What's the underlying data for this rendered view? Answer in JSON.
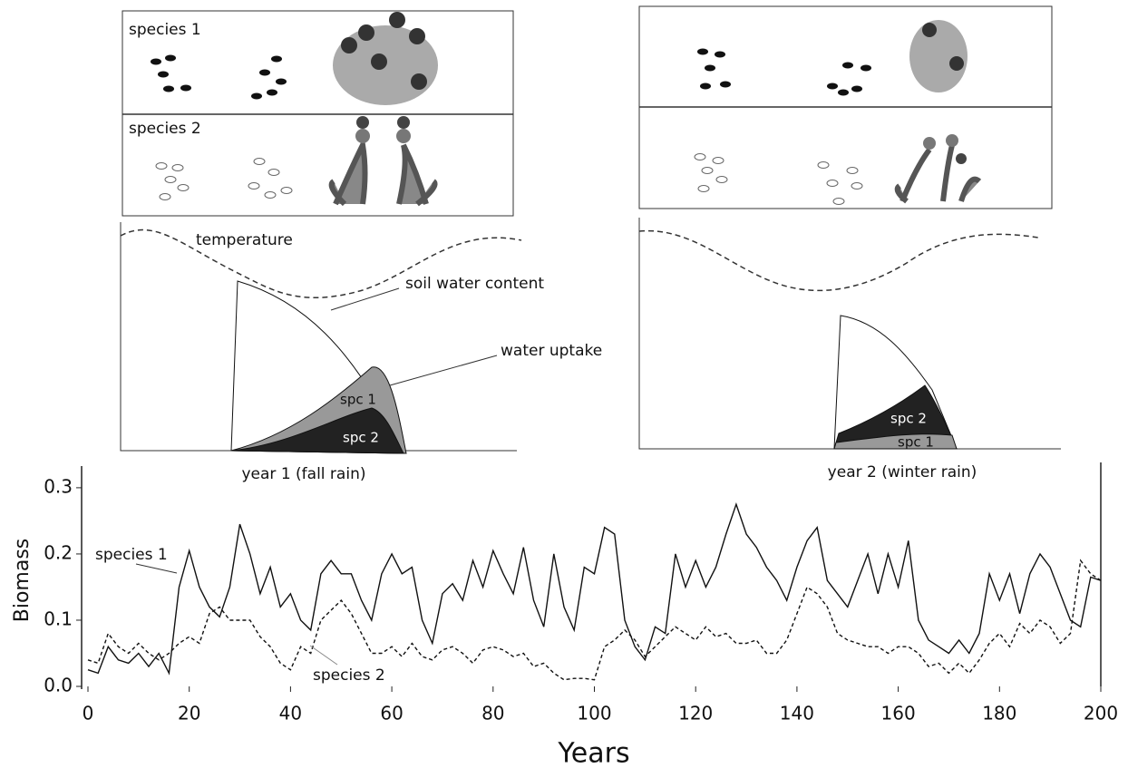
{
  "panels": {
    "species_labels": [
      "species 1",
      "species 2"
    ],
    "left": {
      "temperature": "temperature",
      "soil_water": "soil water content",
      "water_uptake": "water uptake",
      "spc1": "spc 1",
      "spc2": "spc 2",
      "caption": "year 1 (fall rain)"
    },
    "right": {
      "spc2": "spc 2",
      "spc1": "spc 1",
      "caption": "year 2 (winter rain)"
    }
  },
  "chart_data": {
    "type": "line",
    "xlabel": "Years",
    "ylabel": "Biomass",
    "xlim": [
      0,
      200
    ],
    "ylim": [
      0,
      0.33
    ],
    "xticks": [
      0,
      20,
      40,
      60,
      80,
      100,
      120,
      140,
      160,
      180,
      200
    ],
    "yticks": [
      {
        "value": 0,
        "label": "0.0"
      },
      0.1,
      0.2,
      0.3
    ],
    "x": [
      0,
      2,
      4,
      6,
      8,
      10,
      12,
      14,
      16,
      18,
      20,
      22,
      24,
      26,
      28,
      30,
      32,
      34,
      36,
      38,
      40,
      42,
      44,
      46,
      48,
      50,
      52,
      54,
      56,
      58,
      60,
      62,
      64,
      66,
      68,
      70,
      72,
      74,
      76,
      78,
      80,
      82,
      84,
      86,
      88,
      90,
      92,
      94,
      96,
      98,
      100,
      102,
      104,
      106,
      108,
      110,
      112,
      114,
      116,
      118,
      120,
      122,
      124,
      126,
      128,
      130,
      132,
      134,
      136,
      138,
      140,
      142,
      144,
      146,
      148,
      150,
      152,
      154,
      156,
      158,
      160,
      162,
      164,
      166,
      168,
      170,
      172,
      174,
      176,
      178,
      180,
      182,
      184,
      186,
      188,
      190,
      192,
      194,
      196,
      198,
      200
    ],
    "series": [
      {
        "name": "species 1",
        "color": "#111111",
        "dash": "none",
        "values": [
          0.025,
          0.02,
          0.06,
          0.04,
          0.035,
          0.05,
          0.03,
          0.05,
          0.02,
          0.15,
          0.205,
          0.15,
          0.12,
          0.105,
          0.15,
          0.245,
          0.2,
          0.14,
          0.18,
          0.12,
          0.14,
          0.1,
          0.085,
          0.17,
          0.19,
          0.17,
          0.17,
          0.13,
          0.1,
          0.17,
          0.2,
          0.17,
          0.18,
          0.1,
          0.065,
          0.14,
          0.155,
          0.13,
          0.19,
          0.15,
          0.205,
          0.17,
          0.14,
          0.21,
          0.13,
          0.09,
          0.2,
          0.12,
          0.085,
          0.18,
          0.17,
          0.24,
          0.23,
          0.1,
          0.06,
          0.04,
          0.09,
          0.08,
          0.2,
          0.15,
          0.19,
          0.15,
          0.18,
          0.23,
          0.275,
          0.23,
          0.21,
          0.18,
          0.16,
          0.13,
          0.18,
          0.22,
          0.24,
          0.16,
          0.14,
          0.12,
          0.16,
          0.2,
          0.14,
          0.2,
          0.15,
          0.22,
          0.1,
          0.07,
          0.06,
          0.05,
          0.07,
          0.05,
          0.08,
          0.17,
          0.13,
          0.17,
          0.11,
          0.17,
          0.2,
          0.18,
          0.14,
          0.1,
          0.09,
          0.165,
          0.16
        ]
      },
      {
        "name": "species 2",
        "color": "#111111",
        "dash": "4 3",
        "values": [
          0.04,
          0.035,
          0.08,
          0.06,
          0.05,
          0.065,
          0.05,
          0.04,
          0.05,
          0.065,
          0.075,
          0.065,
          0.11,
          0.12,
          0.1,
          0.1,
          0.1,
          0.075,
          0.06,
          0.035,
          0.025,
          0.06,
          0.05,
          0.1,
          0.115,
          0.13,
          0.11,
          0.08,
          0.05,
          0.05,
          0.06,
          0.045,
          0.065,
          0.045,
          0.04,
          0.055,
          0.06,
          0.05,
          0.035,
          0.055,
          0.06,
          0.055,
          0.045,
          0.05,
          0.03,
          0.035,
          0.02,
          0.01,
          0.012,
          0.012,
          0.01,
          0.06,
          0.07,
          0.085,
          0.07,
          0.045,
          0.06,
          0.075,
          0.09,
          0.08,
          0.07,
          0.09,
          0.075,
          0.08,
          0.065,
          0.065,
          0.07,
          0.05,
          0.05,
          0.07,
          0.11,
          0.15,
          0.14,
          0.12,
          0.08,
          0.07,
          0.065,
          0.06,
          0.06,
          0.05,
          0.06,
          0.06,
          0.05,
          0.03,
          0.035,
          0.02,
          0.035,
          0.02,
          0.04,
          0.065,
          0.08,
          0.06,
          0.095,
          0.08,
          0.1,
          0.09,
          0.065,
          0.08,
          0.19,
          0.17,
          0.16
        ]
      }
    ]
  }
}
